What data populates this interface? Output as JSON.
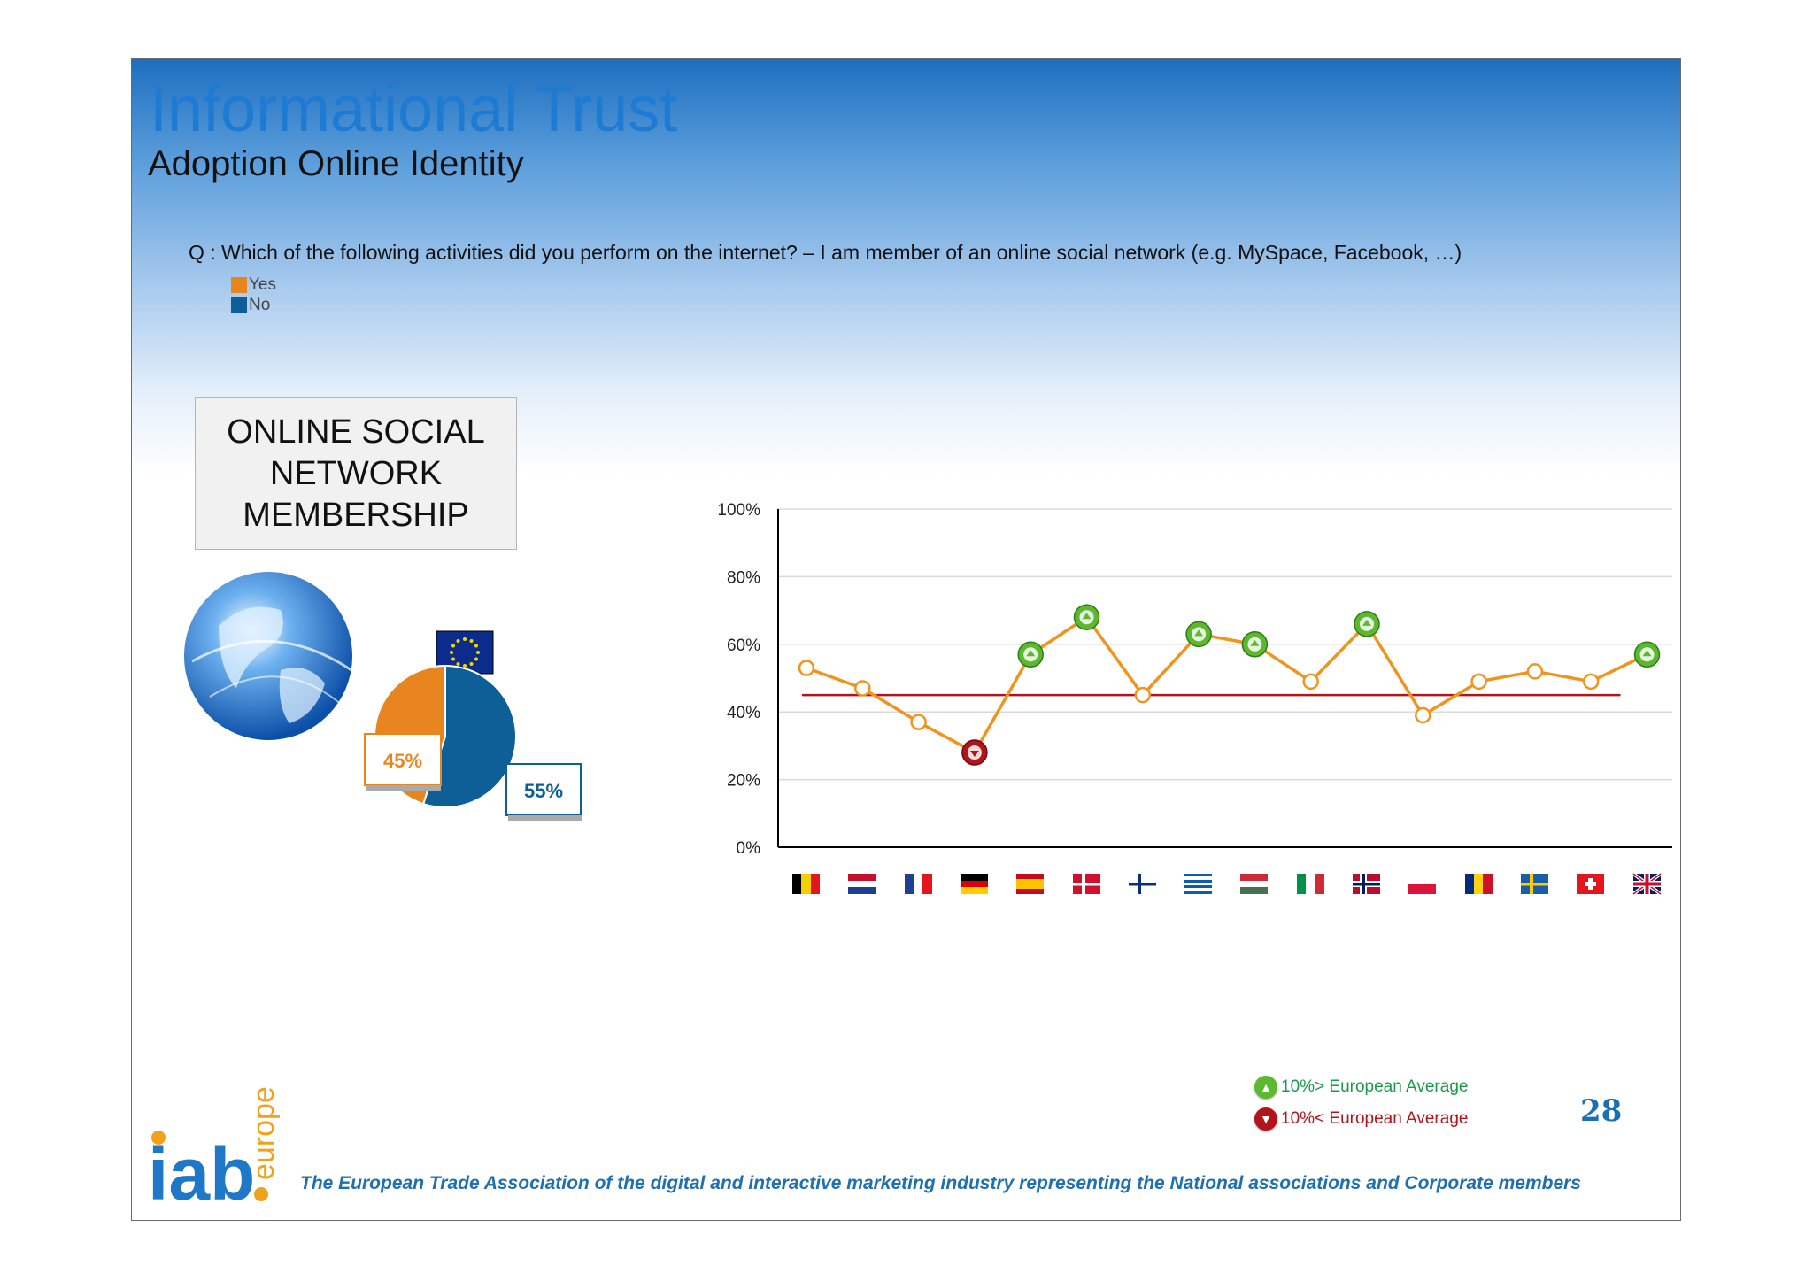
{
  "slide": {
    "title": "Informational Trust",
    "subtitle": "Adoption Online Identity",
    "question": "Q : Which of the following activities did you perform on the internet? – I am member of an online social network (e.g. MySpace, Facebook, …)",
    "legend": [
      {
        "label": "Yes",
        "color": "#e8851f"
      },
      {
        "label": "No",
        "color": "#0e5f97"
      }
    ],
    "box_lines": [
      "ONLINE SOCIAL",
      "NETWORK",
      "MEMBERSHIP"
    ],
    "page_number": "28",
    "tagline": "The European Trade Association of the digital and interactive marketing industry representing the National associations and Corporate members",
    "logo_text": {
      "main": "iab",
      "side": "europe"
    },
    "footer_legend": [
      {
        "label": "10%> European Average",
        "color": "#1a9a4a",
        "icon": "up-arrow-badge-icon"
      },
      {
        "label": "10%< European Average",
        "color": "#b3141b",
        "icon": "down-arrow-badge-icon"
      }
    ]
  },
  "chart_data": [
    {
      "type": "pie",
      "labels": [
        "45%",
        "55%"
      ],
      "values": [
        45,
        55
      ],
      "colors": [
        "#e8851f",
        "#0e5f97"
      ],
      "icons": [
        "globe-icon",
        "eu-flag-icon"
      ]
    },
    {
      "type": "line",
      "categories": [
        "BE",
        "NL",
        "FR",
        "DE",
        "ES",
        "DK",
        "FI",
        "GR",
        "HU",
        "IT",
        "NO",
        "PL",
        "RO",
        "SE",
        "CH",
        "UK"
      ],
      "category_icons": [
        "belgium-flag-icon",
        "netherlands-flag-icon",
        "france-flag-icon",
        "germany-flag-icon",
        "spain-flag-icon",
        "denmark-flag-icon",
        "finland-flag-icon",
        "greece-flag-icon",
        "hungary-flag-icon",
        "italy-flag-icon",
        "norway-flag-icon",
        "poland-flag-icon",
        "romania-flag-icon",
        "sweden-flag-icon",
        "switzerland-flag-icon",
        "uk-flag-icon"
      ],
      "values": [
        53,
        47,
        37,
        28,
        57,
        68,
        45,
        63,
        60,
        49,
        66,
        39,
        49,
        52,
        49,
        57
      ],
      "markers": [
        "none",
        "none",
        "none",
        "down",
        "up",
        "up",
        "none",
        "up",
        "up",
        "none",
        "up",
        "none",
        "none",
        "none",
        "none",
        "up"
      ],
      "reference_line": 45,
      "y_ticks": [
        "0%",
        "20%",
        "40%",
        "60%",
        "80%",
        "100%"
      ],
      "ylim": [
        0,
        100
      ],
      "line_color": "#f0941d",
      "reference_color": "#b3141b",
      "grid": true
    }
  ]
}
